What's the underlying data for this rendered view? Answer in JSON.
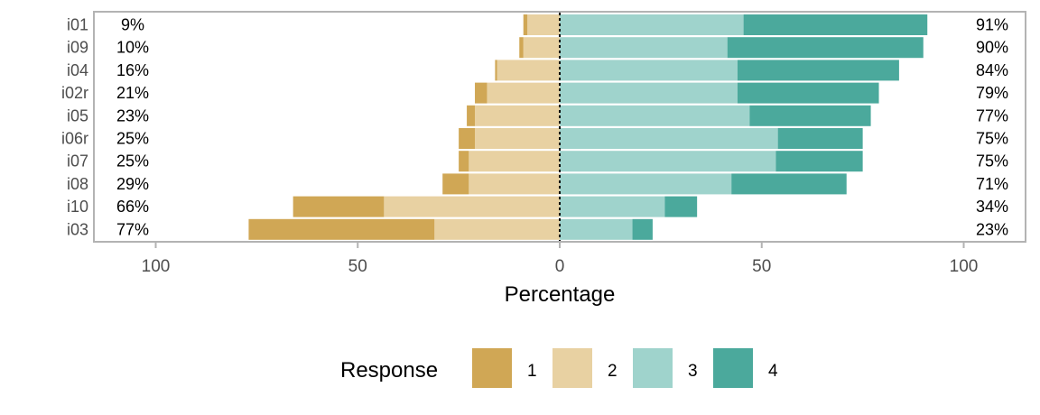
{
  "chart_data": {
    "type": "bar",
    "orientation": "horizontal-diverging",
    "xlabel": "Percentage",
    "xlim": [
      -100,
      100
    ],
    "xticks": [
      -100,
      -50,
      0,
      50,
      100
    ],
    "xtick_labels": [
      "100",
      "50",
      "0",
      "50",
      "100"
    ],
    "legend": {
      "title": "Response",
      "position": "bottom",
      "entries": [
        {
          "label": "1",
          "color": "#d0a755"
        },
        {
          "label": "2",
          "color": "#e8d1a2"
        },
        {
          "label": "3",
          "color": "#9fd3cc"
        },
        {
          "label": "4",
          "color": "#4ba99c"
        }
      ]
    },
    "items": [
      {
        "label": "i01",
        "r1": 1,
        "r2": 8,
        "r3": 45.5,
        "r4": 45.5,
        "low_label": "9%",
        "high_label": "91%"
      },
      {
        "label": "i09",
        "r1": 1,
        "r2": 9,
        "r3": 41.5,
        "r4": 48.5,
        "low_label": "10%",
        "high_label": "90%"
      },
      {
        "label": "i04",
        "r1": 0.5,
        "r2": 15.5,
        "r3": 44,
        "r4": 40,
        "low_label": "16%",
        "high_label": "84%"
      },
      {
        "label": "i02r",
        "r1": 3,
        "r2": 18,
        "r3": 44,
        "r4": 35,
        "low_label": "21%",
        "high_label": "79%"
      },
      {
        "label": "i05",
        "r1": 2,
        "r2": 21,
        "r3": 47,
        "r4": 30,
        "low_label": "23%",
        "high_label": "77%"
      },
      {
        "label": "i06r",
        "r1": 4,
        "r2": 21,
        "r3": 54,
        "r4": 21,
        "low_label": "25%",
        "high_label": "75%"
      },
      {
        "label": "i07",
        "r1": 2.5,
        "r2": 22.5,
        "r3": 53.5,
        "r4": 21.5,
        "low_label": "25%",
        "high_label": "75%"
      },
      {
        "label": "i08",
        "r1": 6.5,
        "r2": 22.5,
        "r3": 42.5,
        "r4": 28.5,
        "low_label": "29%",
        "high_label": "71%"
      },
      {
        "label": "i10",
        "r1": 22.5,
        "r2": 43.5,
        "r3": 26,
        "r4": 8,
        "low_label": "66%",
        "high_label": "34%"
      },
      {
        "label": "i03",
        "r1": 46,
        "r2": 31,
        "r3": 18,
        "r4": 5,
        "low_label": "77%",
        "high_label": "23%"
      }
    ]
  }
}
